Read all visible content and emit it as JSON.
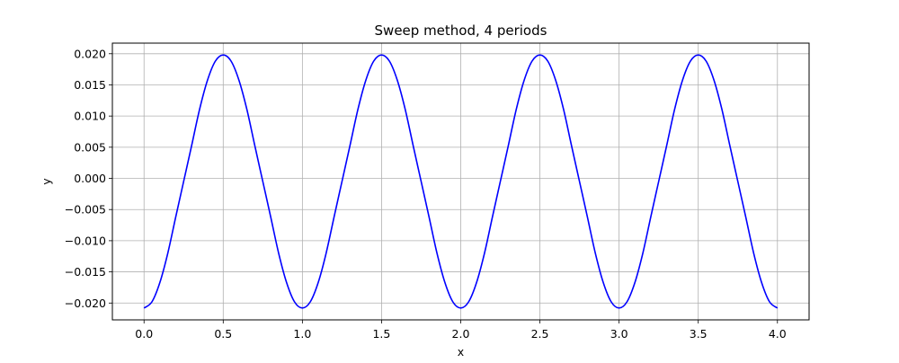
{
  "chart_data": {
    "type": "line",
    "title": "Sweep method, 4 periods",
    "xlabel": "x",
    "ylabel": "y",
    "xlim": [
      -0.2,
      4.2
    ],
    "ylim": [
      -0.0227,
      0.0217
    ],
    "grid": true,
    "x_ticks": [
      0.0,
      0.5,
      1.0,
      1.5,
      2.0,
      2.5,
      3.0,
      3.5,
      4.0
    ],
    "x_tick_labels": [
      "0.0",
      "0.5",
      "1.0",
      "1.5",
      "2.0",
      "2.5",
      "3.0",
      "3.5",
      "4.0"
    ],
    "y_ticks": [
      -0.02,
      -0.015,
      -0.01,
      -0.005,
      0.0,
      0.005,
      0.01,
      0.015,
      0.02
    ],
    "y_tick_labels": [
      "−0.020",
      "−0.015",
      "−0.010",
      "−0.005",
      "0.000",
      "0.005",
      "0.010",
      "0.015",
      "0.020"
    ],
    "series": [
      {
        "color": "#0000ff",
        "x": [
          0.0,
          0.05,
          0.1,
          0.15,
          0.2,
          0.25,
          0.3,
          0.35,
          0.4,
          0.45,
          0.5,
          0.55,
          0.6,
          0.65,
          0.7,
          0.75,
          0.8,
          0.85,
          0.9,
          0.95,
          1.0,
          1.05,
          1.1,
          1.15,
          1.2,
          1.25,
          1.3,
          1.35,
          1.4,
          1.45,
          1.5,
          1.55,
          1.6,
          1.65,
          1.7,
          1.75,
          1.8,
          1.85,
          1.9,
          1.95,
          2.0,
          2.05,
          2.1,
          2.15,
          2.2,
          2.25,
          2.3,
          2.35,
          2.4,
          2.45,
          2.5,
          2.55,
          2.6,
          2.65,
          2.7,
          2.75,
          2.8,
          2.85,
          2.9,
          2.95,
          3.0,
          3.05,
          3.1,
          3.15,
          3.2,
          3.25,
          3.3,
          3.35,
          3.4,
          3.45,
          3.5,
          3.55,
          3.6,
          3.65,
          3.7,
          3.75,
          3.8,
          3.85,
          3.9,
          3.95,
          4.0
        ],
        "y": [
          -0.0208,
          -0.0198,
          -0.0167,
          -0.012,
          -0.0062,
          -0.0005,
          0.0052,
          0.011,
          0.0157,
          0.0188,
          0.0198,
          0.0188,
          0.0157,
          0.011,
          0.0052,
          -0.0005,
          -0.0062,
          -0.012,
          -0.0167,
          -0.0198,
          -0.0208,
          -0.0198,
          -0.0167,
          -0.012,
          -0.0062,
          -0.0005,
          0.0052,
          0.011,
          0.0157,
          0.0188,
          0.0198,
          0.0188,
          0.0157,
          0.011,
          0.0052,
          -0.0005,
          -0.0062,
          -0.012,
          -0.0167,
          -0.0198,
          -0.0208,
          -0.0198,
          -0.0167,
          -0.012,
          -0.0062,
          -0.0005,
          0.0052,
          0.011,
          0.0157,
          0.0188,
          0.0198,
          0.0188,
          0.0157,
          0.011,
          0.0052,
          -0.0005,
          -0.0062,
          -0.012,
          -0.0167,
          -0.0198,
          -0.0208,
          -0.0198,
          -0.0167,
          -0.012,
          -0.0062,
          -0.0005,
          0.0052,
          0.011,
          0.0157,
          0.0188,
          0.0198,
          0.0188,
          0.0157,
          0.011,
          0.0052,
          -0.0005,
          -0.0062,
          -0.012,
          -0.0167,
          -0.0198,
          -0.0208
        ]
      }
    ]
  }
}
